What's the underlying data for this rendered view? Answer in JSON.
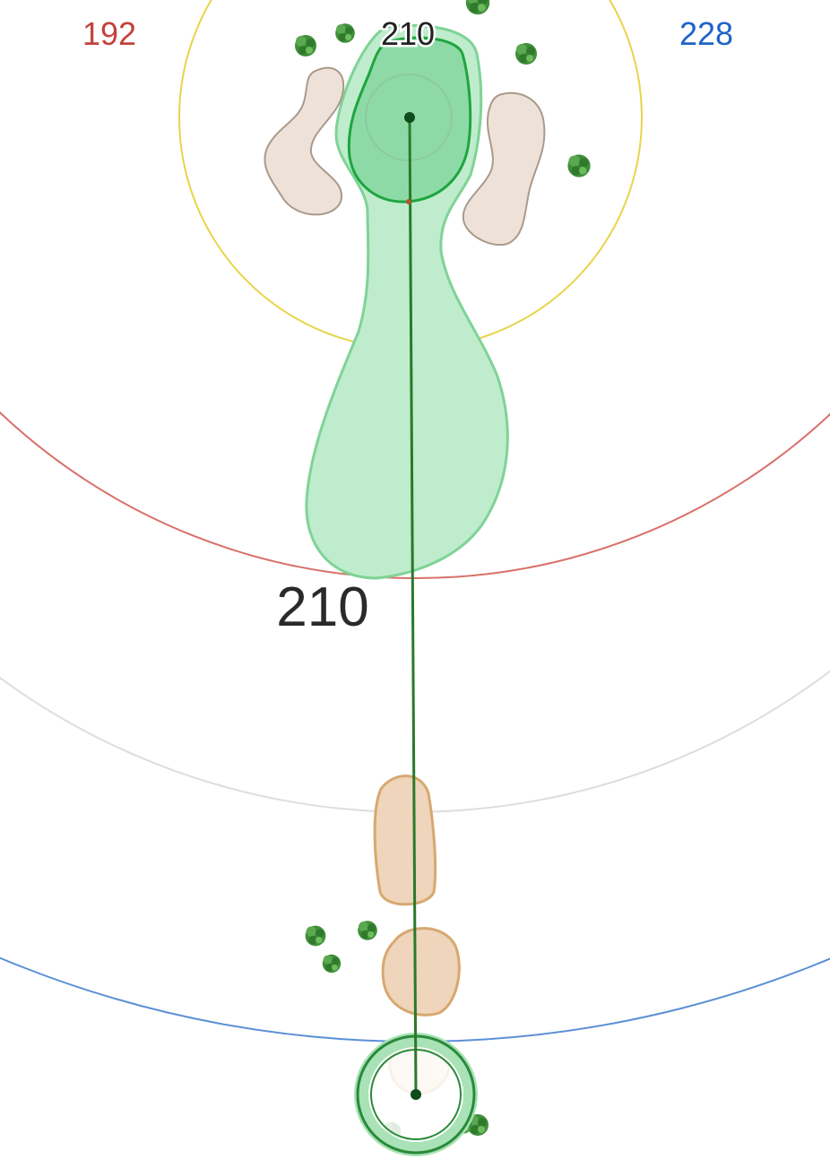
{
  "distances": {
    "front_green": "192",
    "center_green": "210",
    "back_green": "228",
    "shot_distance": "210"
  },
  "colors": {
    "front_ring": "#d9706a",
    "back_ring": "#5b8fd6",
    "green_ring": "#e8d44a",
    "ring_grey": "#dddddd",
    "fairway": "#bfeccd",
    "green": "#8edaa6",
    "bunker": "#eee2d8",
    "waste_bunker": "#eed5bb",
    "shot_line": "#2a7a2a",
    "tree": "#3f8f3a"
  },
  "icons": {
    "tree": "tree-icon",
    "pin": "pin-icon",
    "player": "player-location-icon"
  }
}
